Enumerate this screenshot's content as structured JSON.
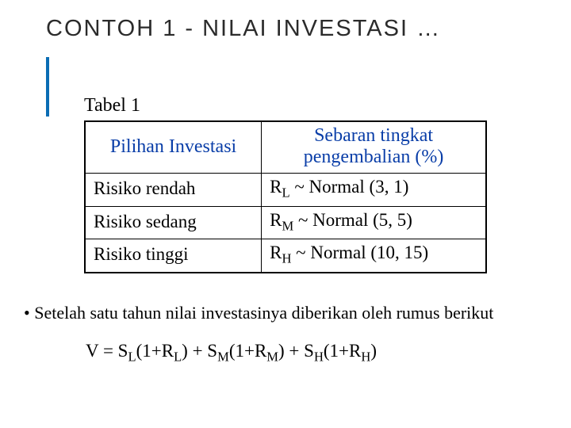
{
  "title": "CONTOH 1 - NILAI INVESTASI …",
  "accent_color": "#0a6db4",
  "table_label": "Tabel 1",
  "table": {
    "header_color": "#0a3ea8",
    "col1_header": "Pilihan Investasi",
    "col2_header_line1": "Sebaran tingkat",
    "col2_header_line2": "pengembalian (%)",
    "rows": [
      {
        "label": "Risiko rendah",
        "rsub": "L",
        "dist": " ~ Normal (3, 1)"
      },
      {
        "label": "Risiko sedang",
        "rsub": "M",
        "dist": " ~ Normal (5, 5)"
      },
      {
        "label": "Risiko tinggi",
        "rsub": "H",
        "dist": " ~ Normal (10, 15)"
      }
    ]
  },
  "bullet_prefix": "• ",
  "bullet_text": "Setelah satu tahun nilai investasinya diberikan oleh rumus berikut",
  "formula": {
    "lead": "V = S",
    "terms": [
      {
        "s_sub": "L",
        "mid": "(1+R",
        "r_sub": "L",
        "close": ") + S"
      },
      {
        "s_sub": "M",
        "mid": "(1+R",
        "r_sub": "M",
        "close": ") + S"
      },
      {
        "s_sub": "H",
        "mid": "(1+R",
        "r_sub": "H",
        "close": ")"
      }
    ]
  }
}
